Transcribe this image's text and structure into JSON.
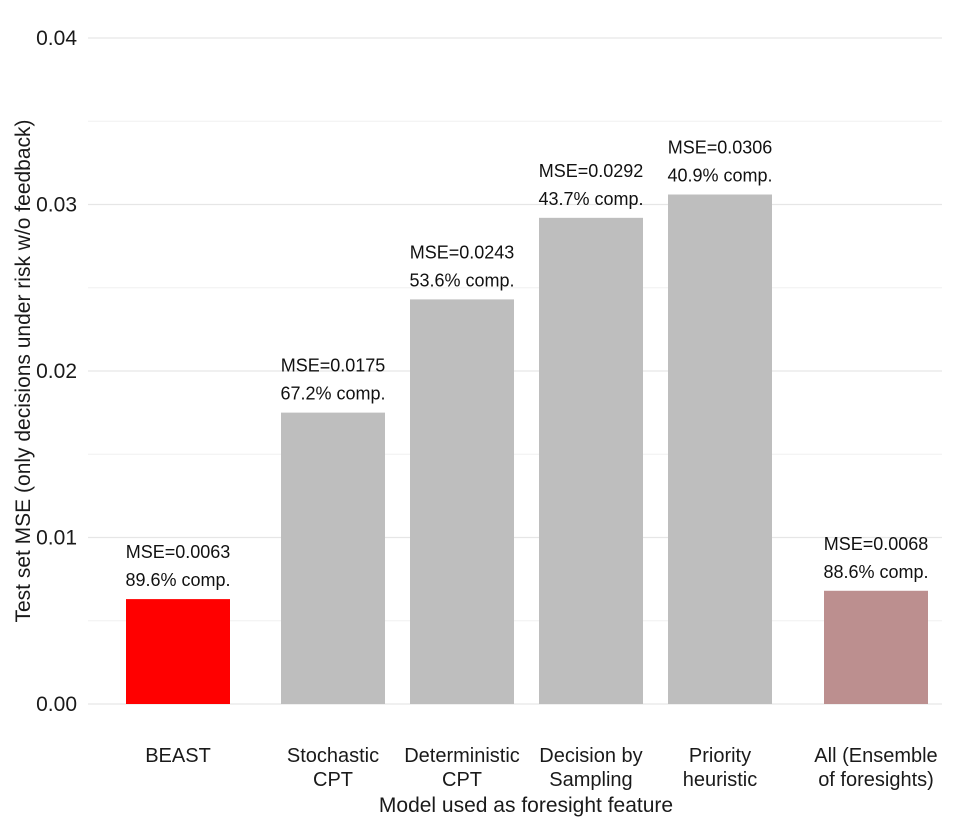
{
  "chart_data": {
    "type": "bar",
    "title": "",
    "xlabel": "Model used as foresight feature",
    "ylabel": "Test set MSE (only decisions under risk w/o feedback)",
    "ylim": [
      0,
      0.04
    ],
    "yticks": [
      "0.00",
      "0.01",
      "0.02",
      "0.03",
      "0.04"
    ],
    "ytick_values": [
      0,
      0.01,
      0.02,
      0.03,
      0.04
    ],
    "grid": true,
    "legend": "none",
    "categories": [
      [
        "BEAST"
      ],
      [
        "Stochastic",
        "CPT"
      ],
      [
        "Deterministic",
        "CPT"
      ],
      [
        "Decision by",
        "Sampling"
      ],
      [
        "Priority",
        "heuristic"
      ],
      [
        "All (Ensemble",
        "of foresights)"
      ]
    ],
    "values": [
      0.0063,
      0.0175,
      0.0243,
      0.0292,
      0.0306,
      0.0068
    ],
    "labels": [
      [
        "MSE=0.0063",
        "89.6% comp."
      ],
      [
        "MSE=0.0175",
        "67.2% comp."
      ],
      [
        "MSE=0.0243",
        "53.6% comp."
      ],
      [
        "MSE=0.0292",
        "43.7% comp."
      ],
      [
        "MSE=0.0306",
        "40.9% comp."
      ],
      [
        "MSE=0.0068",
        "88.6% comp."
      ]
    ],
    "colors": [
      "#ff0000",
      "#bebebe",
      "#bebebe",
      "#bebebe",
      "#bebebe",
      "#bc8f8f"
    ]
  }
}
